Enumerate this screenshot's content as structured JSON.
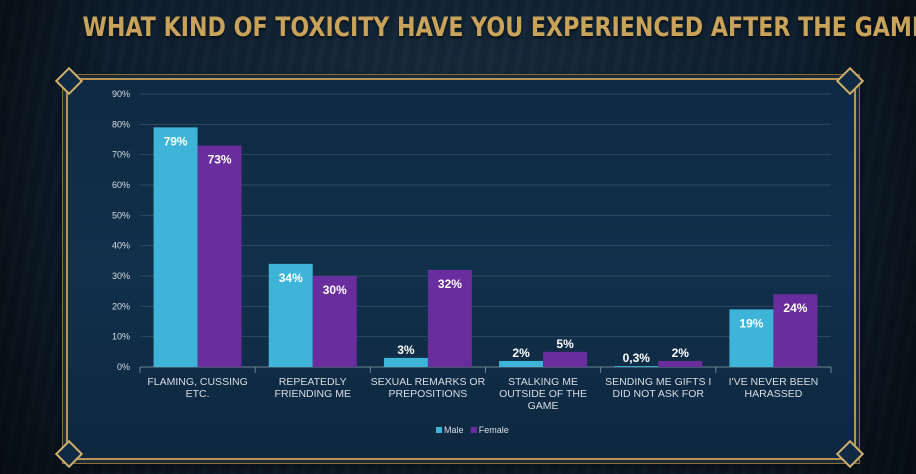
{
  "title": "WHAT KIND OF TOXICITY HAVE YOU EXPERIENCED AFTER THE GAME?",
  "colors": {
    "male": "#3eb4d9",
    "female": "#6a2d9e",
    "title": "#c9a35a",
    "frame": "#b99553",
    "tick_text": "#d6dde4"
  },
  "chart_data": {
    "type": "bar",
    "title": "WHAT KIND OF TOXICITY HAVE YOU EXPERIENCED AFTER THE GAME?",
    "xlabel": "",
    "ylabel": "",
    "ylim": [
      0,
      90
    ],
    "yticks": [
      0,
      10,
      20,
      30,
      40,
      50,
      60,
      70,
      80,
      90
    ],
    "ytick_labels": [
      "0%",
      "10%",
      "20%",
      "30%",
      "40%",
      "50%",
      "60%",
      "70%",
      "80%",
      "90%"
    ],
    "grid": true,
    "legend_position": "bottom-center",
    "categories": [
      [
        "FLAMING, CUSSING",
        "ETC."
      ],
      [
        "REPEATEDLY",
        "FRIENDING ME"
      ],
      [
        "SEXUAL REMARKS OR",
        "PREPOSITIONS"
      ],
      [
        "STALKING ME",
        "OUTSIDE OF THE",
        "GAME"
      ],
      [
        "SENDING ME GIFTS I",
        "DID NOT ASK FOR"
      ],
      [
        "I'VE NEVER BEEN",
        "HARASSED"
      ]
    ],
    "series": [
      {
        "name": "Male",
        "values": [
          79,
          34,
          3,
          2,
          0.3,
          19
        ],
        "labels": [
          "79%",
          "34%",
          "3%",
          "2%",
          "0,3%",
          "19%"
        ]
      },
      {
        "name": "Female",
        "values": [
          73,
          30,
          32,
          5,
          2,
          24
        ],
        "labels": [
          "73%",
          "30%",
          "32%",
          "5%",
          "2%",
          "24%"
        ]
      }
    ]
  }
}
